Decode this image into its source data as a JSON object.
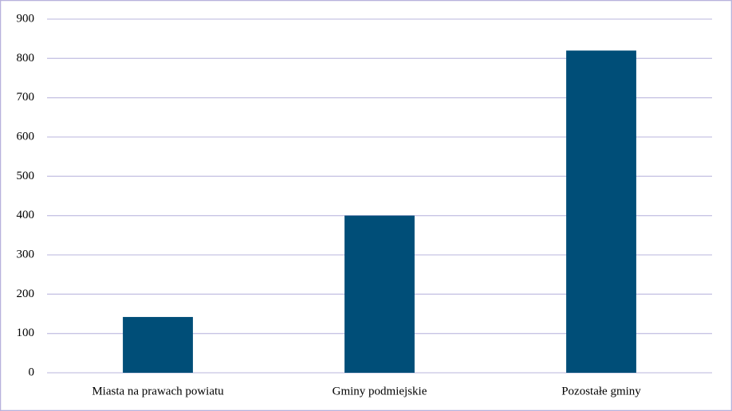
{
  "chart_data": {
    "type": "bar",
    "categories": [
      "Miasta na prawach powiatu",
      "Gminy podmiejskie",
      "Pozostałe gminy"
    ],
    "values": [
      142,
      400,
      820
    ],
    "color": "#004e78",
    "ylim": [
      0,
      900
    ],
    "yticks": [
      0,
      100,
      200,
      300,
      400,
      500,
      600,
      700,
      800,
      900
    ],
    "grid": true
  }
}
